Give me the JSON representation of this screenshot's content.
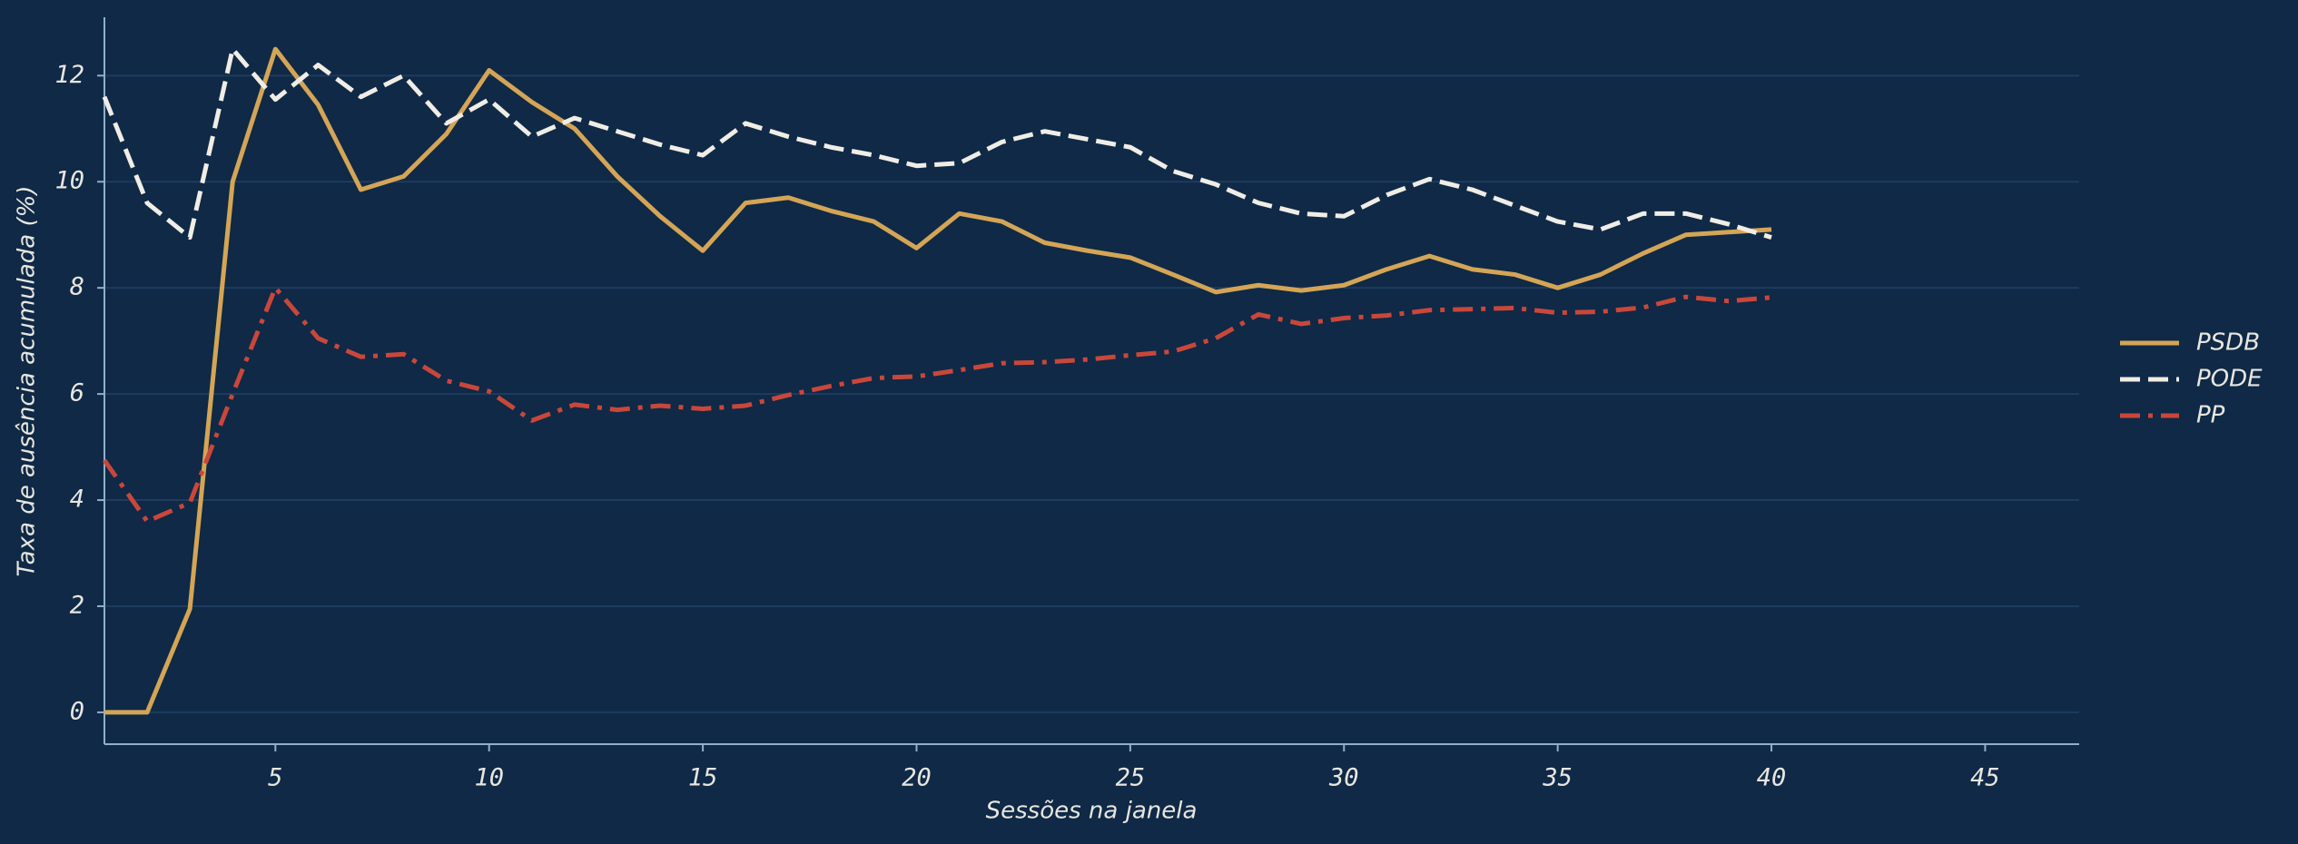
{
  "chart_data": {
    "type": "line",
    "xlabel": "Sessões na janela",
    "ylabel": "Taxa de ausência acumulada (%)",
    "x": [
      1,
      2,
      3,
      4,
      5,
      6,
      7,
      8,
      9,
      10,
      11,
      12,
      13,
      14,
      15,
      16,
      17,
      18,
      19,
      20,
      21,
      22,
      23,
      24,
      25,
      26,
      27,
      28,
      29,
      30,
      31,
      32,
      33,
      34,
      35,
      36,
      37,
      38,
      39,
      40
    ],
    "series": [
      {
        "name": "PSDB",
        "color": "#d4a556",
        "linestyle": "solid",
        "values": [
          0,
          0,
          1.95,
          10,
          12.5,
          11.45,
          9.85,
          10.1,
          10.9,
          12.1,
          11.5,
          11.0,
          10.1,
          9.35,
          8.7,
          9.6,
          9.7,
          9.45,
          9.25,
          8.75,
          9.4,
          9.25,
          8.85,
          8.7,
          8.57,
          8.25,
          7.92,
          8.05,
          7.95,
          8.05,
          8.35,
          8.6,
          8.35,
          8.25,
          8.0,
          8.25,
          8.65,
          9.0,
          9.05,
          9.1
        ]
      },
      {
        "name": "PODE",
        "color": "#f0ede6",
        "linestyle": "dashed",
        "values": [
          11.6,
          9.6,
          8.95,
          12.5,
          11.55,
          12.2,
          11.6,
          12.0,
          11.1,
          11.55,
          10.85,
          11.2,
          10.95,
          10.7,
          10.5,
          11.1,
          10.85,
          10.65,
          10.5,
          10.3,
          10.35,
          10.75,
          10.95,
          10.8,
          10.65,
          10.2,
          9.95,
          9.6,
          9.4,
          9.35,
          9.75,
          10.05,
          9.85,
          9.55,
          9.25,
          9.1,
          9.4,
          9.4,
          9.2,
          8.95
        ]
      },
      {
        "name": "PP",
        "color": "#c9473a",
        "linestyle": "dashdot",
        "values": [
          4.75,
          3.6,
          3.95,
          6.0,
          8.0,
          7.05,
          6.7,
          6.75,
          6.25,
          6.05,
          5.5,
          5.8,
          5.7,
          5.78,
          5.72,
          5.78,
          5.98,
          6.15,
          6.3,
          6.33,
          6.45,
          6.58,
          6.6,
          6.65,
          6.73,
          6.8,
          7.05,
          7.5,
          7.32,
          7.43,
          7.48,
          7.58,
          7.6,
          7.62,
          7.53,
          7.55,
          7.63,
          7.83,
          7.75,
          7.82
        ]
      }
    ],
    "xlim": [
      1,
      47.2
    ],
    "xticks": [
      5,
      10,
      15,
      20,
      25,
      30,
      35,
      40,
      45
    ],
    "ylim": [
      -0.6,
      13.1
    ],
    "yticks": [
      0,
      2,
      4,
      6,
      8,
      10,
      12
    ],
    "grid": true,
    "legend": "right"
  }
}
